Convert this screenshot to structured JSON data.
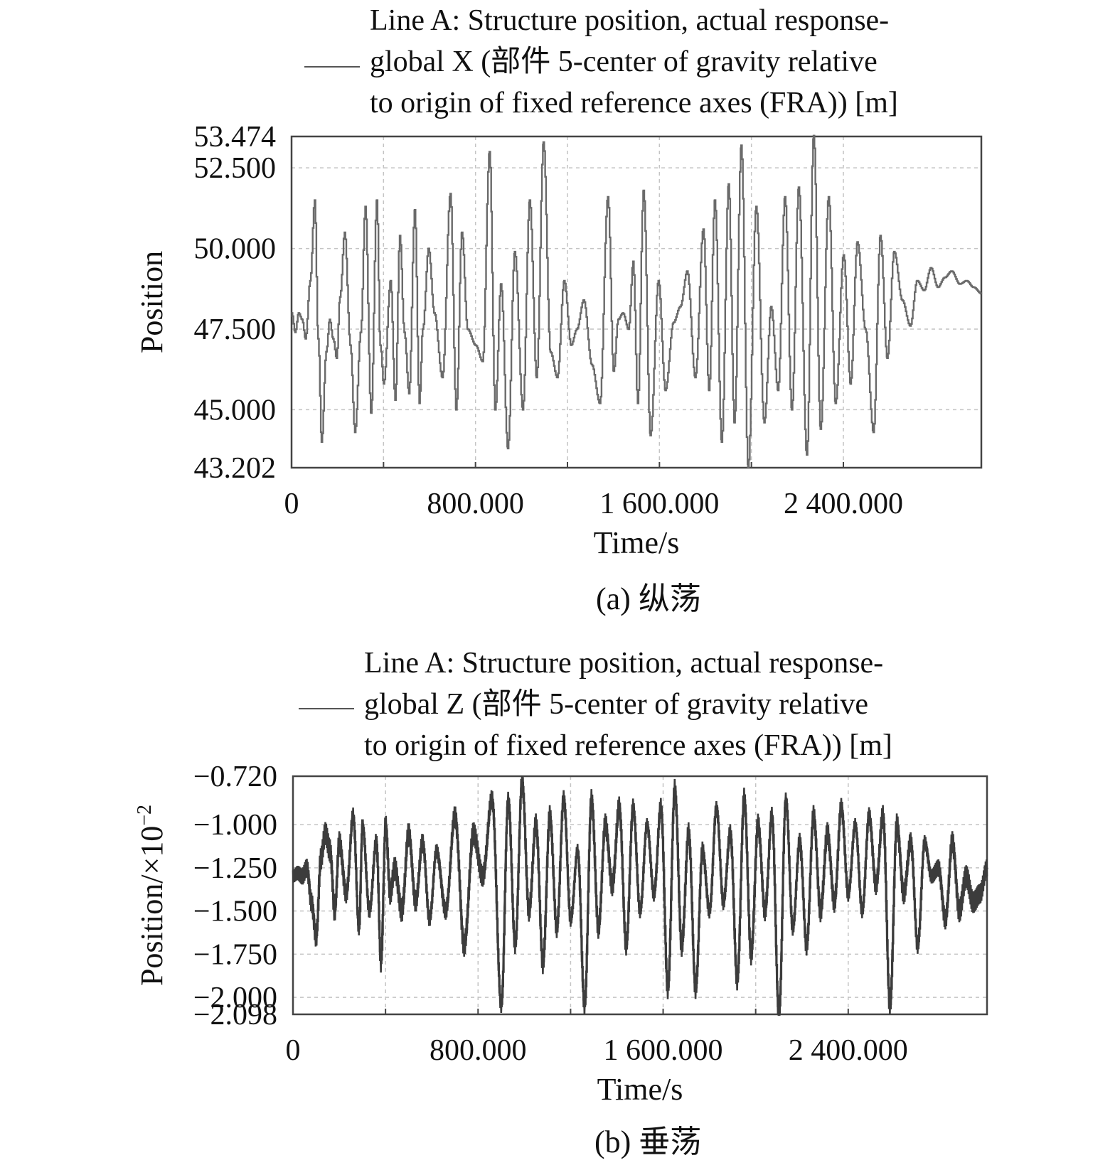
{
  "chart_data": [
    {
      "type": "line",
      "panel": "a",
      "legend": {
        "lines": [
          "Line A: Structure position, actual response-",
          "global X (部件 5-center of gravity relative",
          "to origin of fixed reference axes (FRA)) [m]"
        ]
      },
      "xlabel": "Time/s",
      "ylabel": "Position",
      "caption": "(a) 纵荡",
      "xlim": [
        0,
        3000
      ],
      "ylim": [
        43.202,
        53.474
      ],
      "xticks": [
        {
          "value": 0,
          "label": "0"
        },
        {
          "value": 800,
          "label": "800.000"
        },
        {
          "value": 1600,
          "label": "1 600.000"
        },
        {
          "value": 2400,
          "label": "2 400.000"
        }
      ],
      "xgrid": [
        400,
        800,
        1200,
        1600,
        2000,
        2400
      ],
      "yticks": [
        {
          "value": 53.474,
          "label": "53.474"
        },
        {
          "value": 52.5,
          "label": "52.500"
        },
        {
          "value": 50.0,
          "label": "50.000"
        },
        {
          "value": 47.5,
          "label": "47.500"
        },
        {
          "value": 45.0,
          "label": "45.000"
        },
        {
          "value": 43.202,
          "label": "43.202"
        }
      ],
      "ygrid": [
        52.5,
        50.0,
        47.5,
        45.0
      ],
      "grid": true,
      "line_color": "#6a6a6a",
      "series": [
        {
          "x": [
            0,
            15,
            30,
            45,
            60,
            80,
            100,
            115,
            130,
            150,
            165,
            180,
            195,
            210,
            230,
            255,
            275,
            300,
            320,
            345,
            370,
            385,
            400,
            430,
            450,
            470,
            490,
            510,
            535,
            555,
            570,
            595,
            620,
            655,
            690,
            715,
            740,
            765,
            800,
            830,
            860,
            885,
            910,
            940,
            970,
            1005,
            1035,
            1065,
            1095,
            1125,
            1155,
            1185,
            1215,
            1240,
            1270,
            1305,
            1340,
            1375,
            1400,
            1420,
            1440,
            1465,
            1485,
            1505,
            1530,
            1560,
            1595,
            1625,
            1660,
            1690,
            1720,
            1755,
            1790,
            1815,
            1840,
            1870,
            1900,
            1925,
            1955,
            1985,
            2020,
            2055,
            2085,
            2115,
            2145,
            2175,
            2205,
            2240,
            2270,
            2300,
            2335,
            2365,
            2400,
            2430,
            2460,
            2495,
            2530,
            2560,
            2590,
            2620,
            2655,
            2690,
            2720,
            2750,
            2780,
            2810,
            2840,
            2870,
            2905,
            2935,
            2965,
            3000
          ],
          "values": [
            48.0,
            47.4,
            48.0,
            47.8,
            47.2,
            49.0,
            51.5,
            47.2,
            44.0,
            46.8,
            47.8,
            47.2,
            46.6,
            48.5,
            50.5,
            47.0,
            44.3,
            47.4,
            51.3,
            44.9,
            51.5,
            47.0,
            45.8,
            49.0,
            45.3,
            50.4,
            47.4,
            45.5,
            51.2,
            45.2,
            47.5,
            50.0,
            48.0,
            46.0,
            51.7,
            45.0,
            50.5,
            47.5,
            47.0,
            46.5,
            53.0,
            45.0,
            48.9,
            43.8,
            49.9,
            45.0,
            51.5,
            46.0,
            53.3,
            46.8,
            46.0,
            49.0,
            47.0,
            47.5,
            48.4,
            46.4,
            45.2,
            51.6,
            46.2,
            47.8,
            48.0,
            47.5,
            49.6,
            45.2,
            51.8,
            44.2,
            49.0,
            45.6,
            47.7,
            48.2,
            49.3,
            46.0,
            50.6,
            45.6,
            51.5,
            44.0,
            52.0,
            44.6,
            53.2,
            43.2,
            51.3,
            44.6,
            48.2,
            45.6,
            51.6,
            45.0,
            51.9,
            43.6,
            53.5,
            44.4,
            51.6,
            45.2,
            49.8,
            45.8,
            50.2,
            47.5,
            44.3,
            50.4,
            46.6,
            49.9,
            48.4,
            47.6,
            49.0,
            48.7,
            49.4,
            48.8,
            49.1,
            49.3,
            48.9,
            49.0,
            48.8,
            48.6
          ]
        }
      ]
    },
    {
      "type": "line",
      "panel": "b",
      "legend": {
        "lines": [
          "Line A: Structure position, actual response-",
          "global Z (部件 5-center of gravity relative",
          "to origin of fixed reference axes (FRA)) [m]"
        ]
      },
      "xlabel": "Time/s",
      "ylabel": "Position/×10",
      "ylabel_exponent": "−2",
      "caption": "(b) 垂荡",
      "xlim": [
        0,
        3000
      ],
      "ylim": [
        -2.098,
        -0.72
      ],
      "xticks": [
        {
          "value": 0,
          "label": "0"
        },
        {
          "value": 800,
          "label": "800.000"
        },
        {
          "value": 1600,
          "label": "1 600.000"
        },
        {
          "value": 2400,
          "label": "2 400.000"
        }
      ],
      "xgrid": [
        400,
        800,
        1200,
        1600,
        2000,
        2400
      ],
      "yticks": [
        {
          "value": -0.72,
          "label": "−0.720"
        },
        {
          "value": -1.0,
          "label": "−1.000"
        },
        {
          "value": -1.25,
          "label": "−1.250"
        },
        {
          "value": -1.5,
          "label": "−1.500"
        },
        {
          "value": -1.75,
          "label": "−1.750"
        },
        {
          "value": -2.0,
          "label": "−2.000"
        },
        {
          "value": -2.098,
          "label": "−2.098"
        }
      ],
      "ygrid": [
        -1.0,
        -1.25,
        -1.5,
        -1.75,
        -2.0
      ],
      "grid": true,
      "line_color": "#3c3c3c",
      "series": [
        {
          "x": [
            0,
            20,
            40,
            60,
            80,
            100,
            120,
            140,
            160,
            180,
            200,
            230,
            260,
            285,
            300,
            330,
            360,
            380,
            400,
            420,
            440,
            470,
            500,
            530,
            560,
            590,
            620,
            660,
            700,
            740,
            780,
            820,
            860,
            900,
            930,
            960,
            990,
            1020,
            1050,
            1080,
            1110,
            1140,
            1170,
            1200,
            1230,
            1260,
            1290,
            1320,
            1350,
            1380,
            1410,
            1440,
            1470,
            1500,
            1530,
            1560,
            1590,
            1620,
            1650,
            1680,
            1710,
            1740,
            1770,
            1800,
            1830,
            1860,
            1890,
            1920,
            1950,
            1980,
            2010,
            2040,
            2070,
            2100,
            2130,
            2160,
            2190,
            2220,
            2250,
            2280,
            2310,
            2340,
            2370,
            2400,
            2430,
            2460,
            2490,
            2520,
            2550,
            2580,
            2610,
            2640,
            2670,
            2700,
            2730,
            2760,
            2790,
            2820,
            2850,
            2880,
            2910,
            2940,
            2970,
            3000
          ],
          "values": [
            -1.3,
            -1.28,
            -1.3,
            -1.25,
            -1.45,
            -1.65,
            -1.2,
            -1.05,
            -1.15,
            -1.5,
            -1.1,
            -1.4,
            -0.95,
            -1.6,
            -1.0,
            -1.5,
            -1.1,
            -1.8,
            -1.0,
            -1.4,
            -1.25,
            -1.5,
            -1.05,
            -1.45,
            -1.1,
            -1.55,
            -1.15,
            -1.5,
            -0.95,
            -1.7,
            -1.05,
            -1.3,
            -0.85,
            -2.05,
            -0.85,
            -1.7,
            -0.75,
            -1.5,
            -1.0,
            -1.8,
            -0.95,
            -1.6,
            -0.85,
            -1.55,
            -1.15,
            -2.05,
            -0.85,
            -1.6,
            -1.0,
            -1.35,
            -0.9,
            -1.7,
            -0.9,
            -1.5,
            -1.0,
            -1.4,
            -0.9,
            -1.95,
            -0.8,
            -1.7,
            -1.05,
            -1.95,
            -1.15,
            -1.5,
            -0.9,
            -1.45,
            -1.05,
            -1.9,
            -0.85,
            -1.75,
            -1.0,
            -1.5,
            -0.95,
            -2.1,
            -0.85,
            -1.6,
            -1.1,
            -1.7,
            -0.95,
            -1.5,
            -1.05,
            -1.45,
            -0.9,
            -1.4,
            -1.0,
            -1.5,
            -0.95,
            -1.35,
            -0.95,
            -2.05,
            -1.0,
            -1.4,
            -1.1,
            -1.7,
            -1.1,
            -1.3,
            -1.25,
            -1.55,
            -1.1,
            -1.5,
            -1.3,
            -1.45,
            -1.4,
            -1.25
          ]
        }
      ]
    }
  ]
}
